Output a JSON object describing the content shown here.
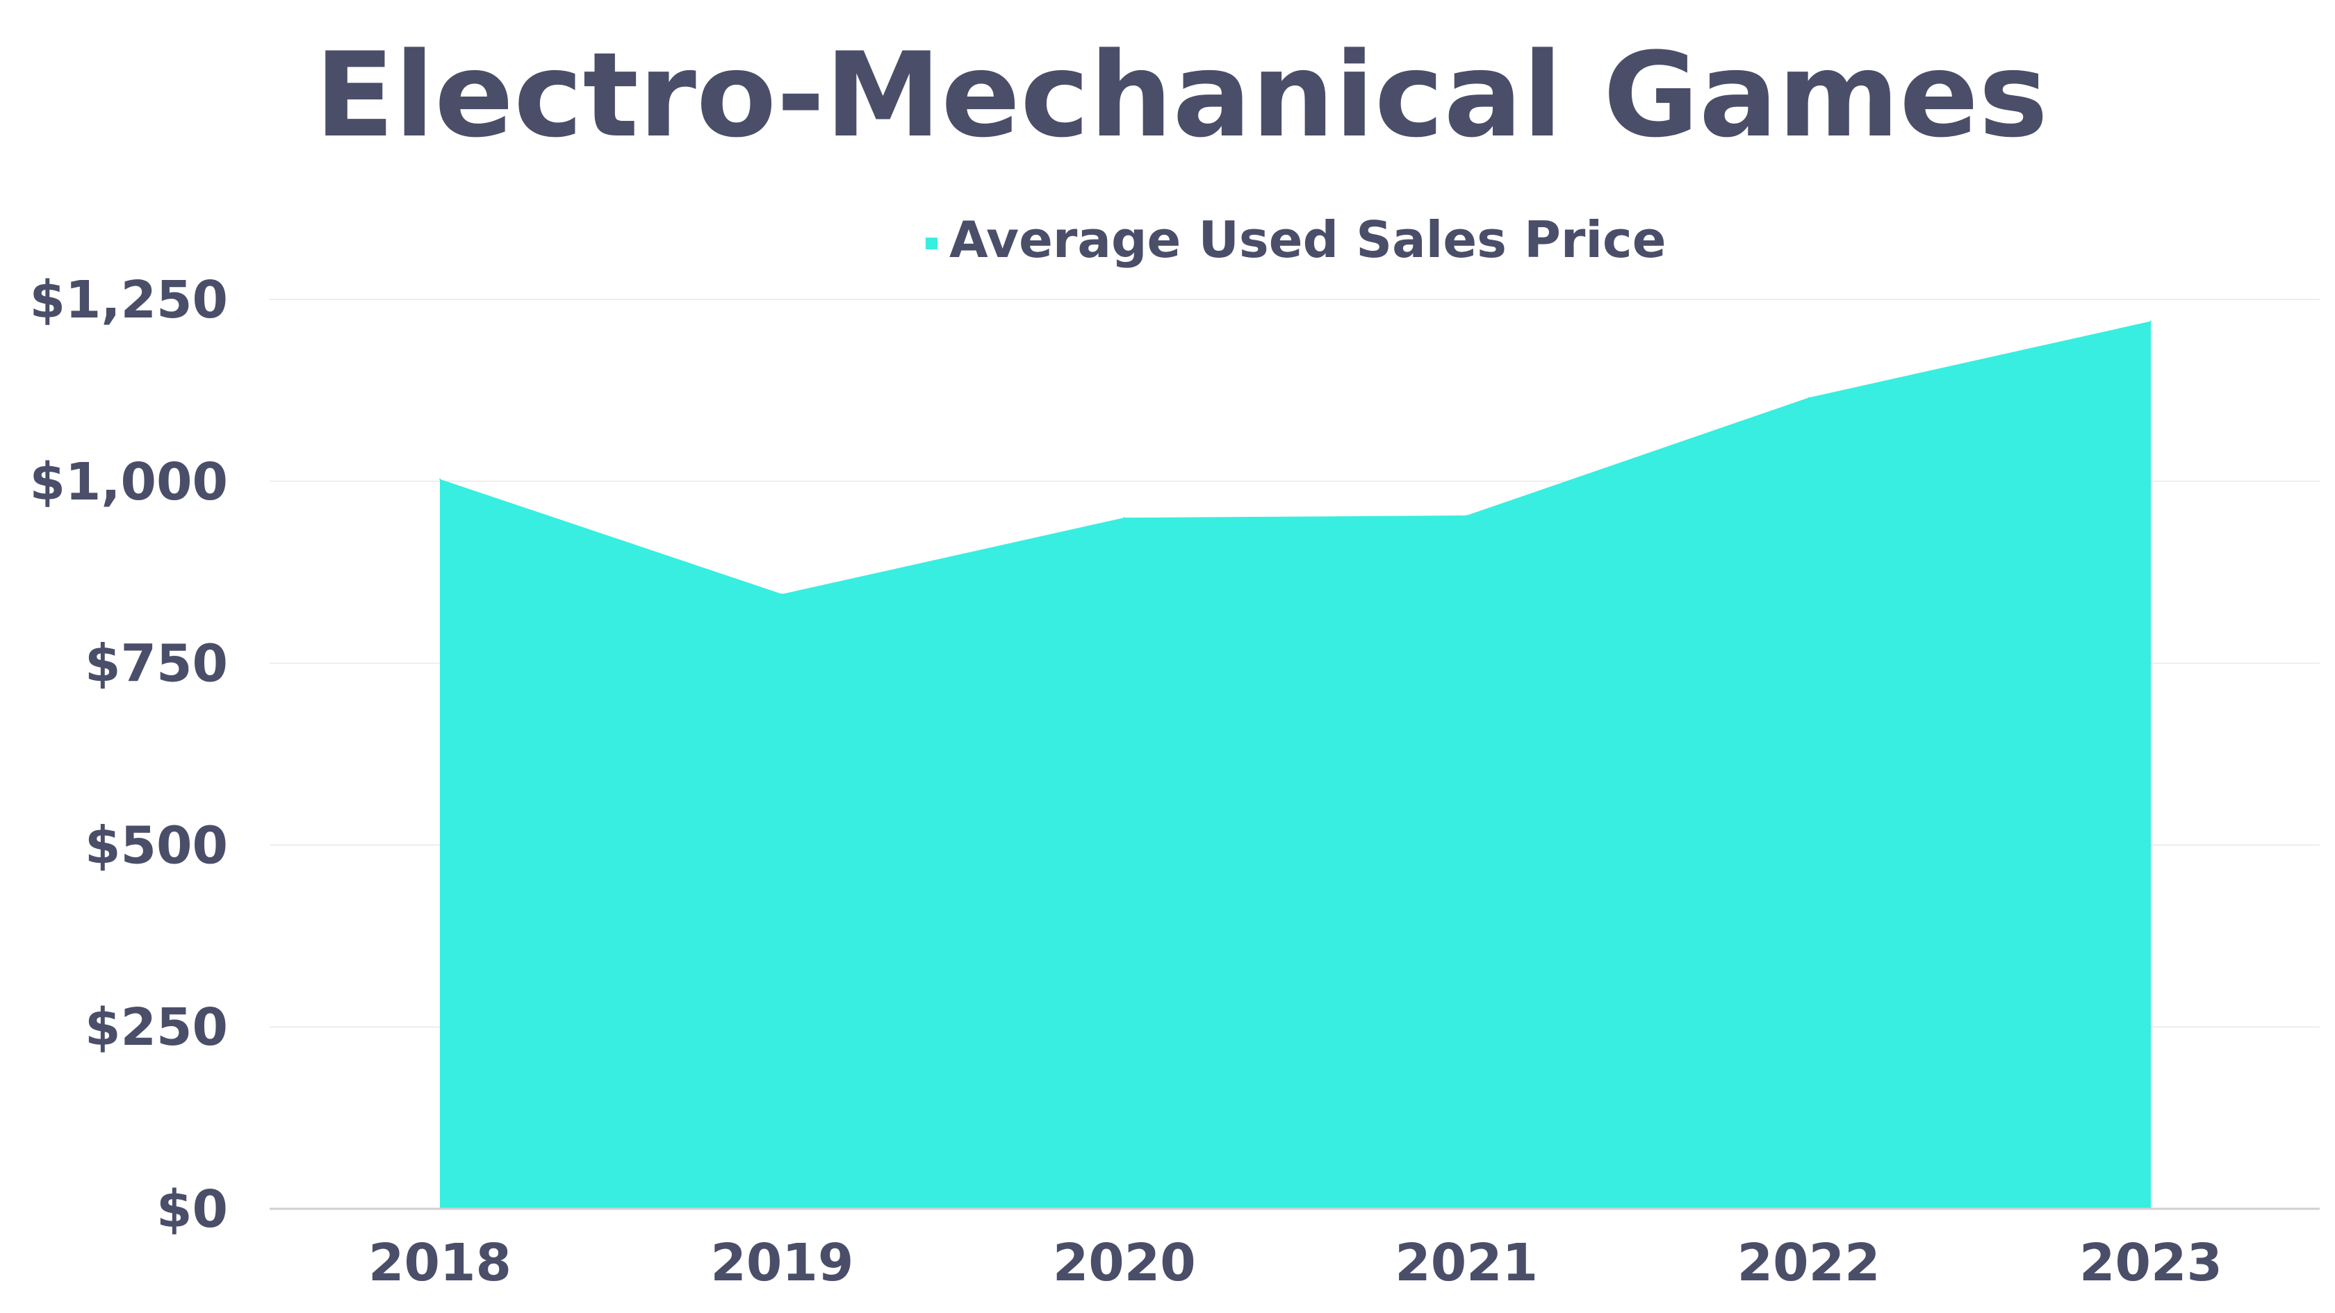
{
  "chart_data": {
    "type": "area",
    "title": "Electro-Mechanical Games",
    "xlabel": "",
    "ylabel": "",
    "categories": [
      "2018",
      "2019",
      "2020",
      "2021",
      "2022",
      "2023"
    ],
    "series": [
      {
        "name": "Average Used Sales Price",
        "values": [
          1003,
          845,
          950,
          953,
          1115,
          1220
        ],
        "color": "#38EEE0"
      }
    ],
    "ylim": [
      0,
      1250
    ],
    "yticks": [
      0,
      250,
      500,
      750,
      1000,
      1250
    ],
    "ytick_labels": [
      "$0",
      "$250",
      "$500",
      "$750",
      "$1,000",
      "$1,250"
    ],
    "grid": true,
    "legend_position": "top-center",
    "colors": {
      "text": "#4A4E69",
      "grid": "#EDEDED",
      "axis_line": "#D0D0D0",
      "fill": "#38EEE0"
    }
  }
}
